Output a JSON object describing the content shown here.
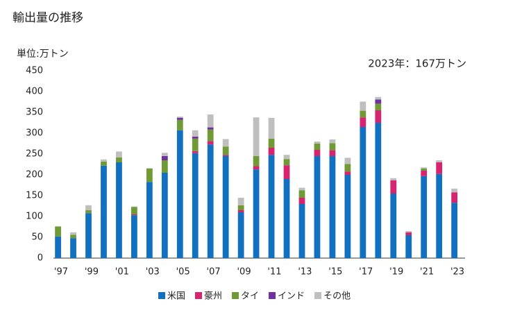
{
  "chart_data": {
    "type": "bar",
    "stacked": true,
    "title": "輸出量の推移",
    "y_label": "単位:万トン",
    "annotation": "2023年：167万トン",
    "categories": [
      "'97",
      null,
      "'99",
      null,
      "'01",
      null,
      "'03",
      null,
      "'05",
      null,
      "'07",
      null,
      "'09",
      null,
      "'11",
      null,
      "'13",
      null,
      "'15",
      null,
      "'17",
      null,
      "'19",
      null,
      "'21",
      null,
      "'23"
    ],
    "series": [
      {
        "name": "米国",
        "color": "#1170c0",
        "values": [
          52,
          48,
          108,
          222,
          230,
          103,
          183,
          205,
          307,
          252,
          273,
          245,
          110,
          213,
          248,
          190,
          130,
          245,
          245,
          200,
          315,
          325,
          155,
          55,
          197,
          202,
          133
        ]
      },
      {
        "name": "豪州",
        "color": "#d6246e",
        "values": [
          0,
          0,
          0,
          0,
          0,
          2,
          0,
          0,
          0,
          5,
          8,
          3,
          5,
          8,
          17,
          33,
          15,
          15,
          14,
          8,
          23,
          30,
          32,
          7,
          13,
          28,
          25
        ]
      },
      {
        "name": "タイ",
        "color": "#6f9a35",
        "values": [
          24,
          8,
          7,
          10,
          12,
          18,
          32,
          30,
          25,
          30,
          28,
          20,
          12,
          24,
          22,
          15,
          18,
          15,
          17,
          18,
          16,
          16,
          0,
          0,
          5,
          0,
          0
        ]
      },
      {
        "name": "インド",
        "color": "#7030a0",
        "values": [
          0,
          0,
          0,
          0,
          0,
          0,
          0,
          10,
          5,
          5,
          5,
          0,
          0,
          0,
          0,
          0,
          0,
          0,
          0,
          0,
          0,
          10,
          0,
          0,
          0,
          0,
          0
        ]
      },
      {
        "name": "その他",
        "color": "#bfbfbf",
        "values": [
          0,
          6,
          12,
          5,
          14,
          1,
          1,
          8,
          3,
          15,
          31,
          18,
          18,
          93,
          50,
          10,
          6,
          5,
          9,
          15,
          22,
          6,
          5,
          3,
          3,
          5,
          9
        ]
      }
    ],
    "ylim": [
      0,
      450
    ],
    "yticks": [
      0,
      50,
      100,
      150,
      200,
      250,
      300,
      350,
      400,
      450
    ]
  }
}
